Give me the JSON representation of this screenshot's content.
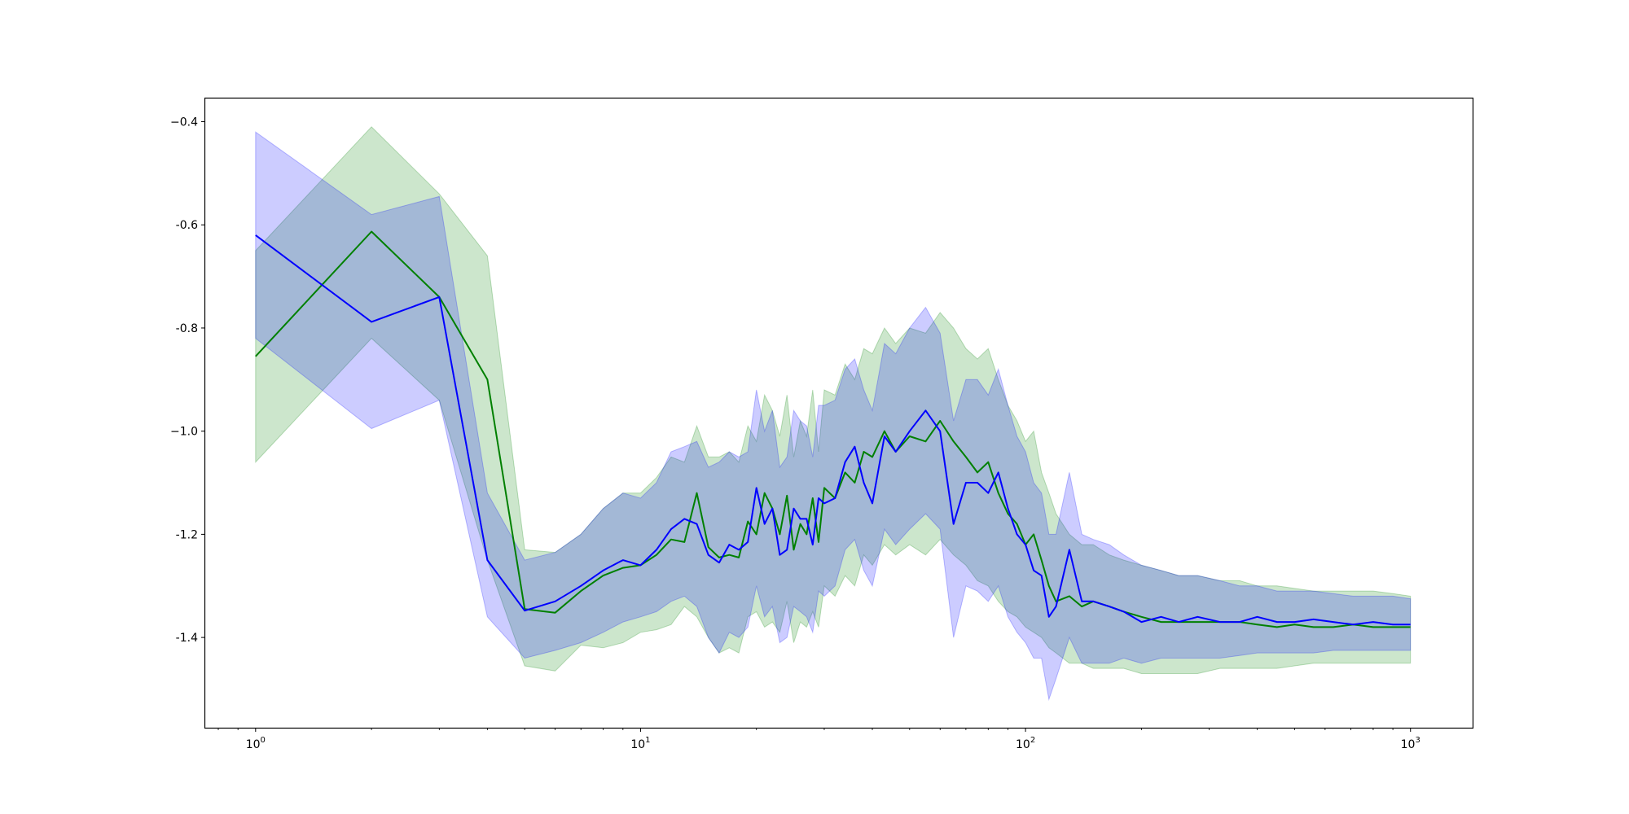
{
  "chart_data": {
    "type": "line",
    "title": "",
    "xlabel": "",
    "ylabel": "",
    "xscale": "log",
    "xlim": [
      0.74,
      1450
    ],
    "ylim": [
      -1.575,
      -0.355
    ],
    "x_ticks": [
      {
        "base": "10",
        "exp": "0",
        "value": 1
      },
      {
        "base": "10",
        "exp": "1",
        "value": 10
      },
      {
        "base": "10",
        "exp": "2",
        "value": 100
      },
      {
        "base": "10",
        "exp": "3",
        "value": 1000
      }
    ],
    "y_ticks": [
      {
        "label": "−0.4",
        "value": -0.4
      },
      {
        "label": "-0.6",
        "value": -0.6
      },
      {
        "label": "-0.8",
        "value": -0.8
      },
      {
        "label": "−1.0",
        "value": -1.0
      },
      {
        "label": "-1.2",
        "value": -1.2
      },
      {
        "label": "-1.4",
        "value": -1.4
      }
    ],
    "grid": false,
    "legend": "none",
    "series": [
      {
        "color": "#008000",
        "band_color": "#008000",
        "x": [
          1,
          2,
          3,
          4,
          5,
          6,
          7,
          8,
          9,
          10,
          11,
          12,
          13,
          14,
          15,
          16,
          17,
          18,
          19,
          20,
          21,
          22,
          23,
          24,
          25,
          26,
          27,
          28,
          29,
          30,
          32,
          34,
          36,
          38,
          40,
          43,
          46,
          50,
          55,
          60,
          65,
          70,
          75,
          80,
          85,
          90,
          95,
          100,
          105,
          110,
          115,
          120,
          130,
          140,
          150,
          165,
          180,
          200,
          225,
          250,
          280,
          320,
          360,
          400,
          450,
          500,
          560,
          630,
          710,
          800,
          900,
          1000
        ],
        "mean": [
          -0.855,
          -0.613,
          -0.74,
          -0.9,
          -1.345,
          -1.352,
          -1.31,
          -1.28,
          -1.265,
          -1.26,
          -1.24,
          -1.21,
          -1.215,
          -1.12,
          -1.225,
          -1.245,
          -1.24,
          -1.245,
          -1.175,
          -1.2,
          -1.12,
          -1.15,
          -1.2,
          -1.125,
          -1.23,
          -1.18,
          -1.2,
          -1.13,
          -1.215,
          -1.11,
          -1.13,
          -1.08,
          -1.1,
          -1.04,
          -1.05,
          -1.0,
          -1.04,
          -1.01,
          -1.02,
          -0.98,
          -1.02,
          -1.05,
          -1.08,
          -1.06,
          -1.12,
          -1.16,
          -1.18,
          -1.22,
          -1.2,
          -1.25,
          -1.3,
          -1.33,
          -1.32,
          -1.34,
          -1.33,
          -1.34,
          -1.35,
          -1.36,
          -1.37,
          -1.37,
          -1.37,
          -1.37,
          -1.37,
          -1.375,
          -1.38,
          -1.375,
          -1.38,
          -1.38,
          -1.375,
          -1.38,
          -1.38,
          -1.38
        ],
        "lower": [
          -1.06,
          -0.82,
          -0.94,
          -1.25,
          -1.455,
          -1.465,
          -1.415,
          -1.42,
          -1.41,
          -1.39,
          -1.385,
          -1.375,
          -1.34,
          -1.36,
          -1.4,
          -1.43,
          -1.42,
          -1.43,
          -1.36,
          -1.35,
          -1.38,
          -1.37,
          -1.39,
          -1.33,
          -1.41,
          -1.37,
          -1.38,
          -1.35,
          -1.38,
          -1.3,
          -1.32,
          -1.28,
          -1.3,
          -1.24,
          -1.26,
          -1.22,
          -1.24,
          -1.22,
          -1.24,
          -1.21,
          -1.24,
          -1.26,
          -1.29,
          -1.3,
          -1.33,
          -1.35,
          -1.36,
          -1.38,
          -1.39,
          -1.4,
          -1.42,
          -1.43,
          -1.45,
          -1.45,
          -1.46,
          -1.46,
          -1.46,
          -1.47,
          -1.47,
          -1.47,
          -1.47,
          -1.46,
          -1.46,
          -1.46,
          -1.46,
          -1.455,
          -1.45,
          -1.45,
          -1.45,
          -1.45,
          -1.45,
          -1.45
        ],
        "upper": [
          -0.65,
          -0.41,
          -0.54,
          -0.66,
          -1.23,
          -1.235,
          -1.2,
          -1.15,
          -1.12,
          -1.12,
          -1.09,
          -1.05,
          -1.06,
          -0.99,
          -1.05,
          -1.05,
          -1.04,
          -1.06,
          -0.99,
          -1.02,
          -0.93,
          -0.96,
          -1.01,
          -0.93,
          -1.05,
          -0.98,
          -1.01,
          -0.92,
          -1.04,
          -0.92,
          -0.93,
          -0.87,
          -0.9,
          -0.84,
          -0.85,
          -0.8,
          -0.83,
          -0.8,
          -0.81,
          -0.77,
          -0.8,
          -0.84,
          -0.86,
          -0.84,
          -0.9,
          -0.95,
          -0.98,
          -1.02,
          -1.0,
          -1.08,
          -1.12,
          -1.16,
          -1.2,
          -1.22,
          -1.22,
          -1.24,
          -1.25,
          -1.26,
          -1.27,
          -1.28,
          -1.28,
          -1.29,
          -1.29,
          -1.3,
          -1.3,
          -1.305,
          -1.31,
          -1.31,
          -1.31,
          -1.31,
          -1.315,
          -1.32
        ]
      },
      {
        "color": "#0000ff",
        "band_color": "#0000ff",
        "x": [
          1,
          2,
          3,
          4,
          5,
          6,
          7,
          8,
          9,
          10,
          11,
          12,
          13,
          14,
          15,
          16,
          17,
          18,
          19,
          20,
          21,
          22,
          23,
          24,
          25,
          26,
          27,
          28,
          29,
          30,
          32,
          34,
          36,
          38,
          40,
          43,
          46,
          50,
          55,
          60,
          65,
          70,
          75,
          80,
          85,
          90,
          95,
          100,
          105,
          110,
          115,
          120,
          130,
          140,
          150,
          165,
          180,
          200,
          225,
          250,
          280,
          320,
          360,
          400,
          450,
          500,
          560,
          630,
          710,
          800,
          900,
          1000
        ],
        "mean": [
          -0.62,
          -0.788,
          -0.74,
          -1.25,
          -1.348,
          -1.33,
          -1.3,
          -1.27,
          -1.25,
          -1.26,
          -1.23,
          -1.19,
          -1.17,
          -1.18,
          -1.24,
          -1.255,
          -1.22,
          -1.23,
          -1.215,
          -1.11,
          -1.18,
          -1.15,
          -1.24,
          -1.23,
          -1.15,
          -1.17,
          -1.17,
          -1.22,
          -1.13,
          -1.14,
          -1.13,
          -1.06,
          -1.03,
          -1.1,
          -1.14,
          -1.01,
          -1.04,
          -1.0,
          -0.96,
          -1.0,
          -1.18,
          -1.1,
          -1.1,
          -1.12,
          -1.08,
          -1.15,
          -1.2,
          -1.22,
          -1.27,
          -1.28,
          -1.36,
          -1.34,
          -1.23,
          -1.33,
          -1.33,
          -1.34,
          -1.35,
          -1.37,
          -1.36,
          -1.37,
          -1.36,
          -1.37,
          -1.37,
          -1.36,
          -1.37,
          -1.37,
          -1.365,
          -1.37,
          -1.375,
          -1.37,
          -1.375,
          -1.375
        ],
        "lower": [
          -0.82,
          -0.995,
          -0.94,
          -1.36,
          -1.44,
          -1.425,
          -1.41,
          -1.39,
          -1.37,
          -1.36,
          -1.35,
          -1.33,
          -1.32,
          -1.34,
          -1.4,
          -1.43,
          -1.39,
          -1.4,
          -1.38,
          -1.3,
          -1.36,
          -1.34,
          -1.41,
          -1.4,
          -1.34,
          -1.35,
          -1.36,
          -1.39,
          -1.31,
          -1.32,
          -1.3,
          -1.23,
          -1.21,
          -1.27,
          -1.3,
          -1.19,
          -1.22,
          -1.19,
          -1.16,
          -1.19,
          -1.4,
          -1.3,
          -1.31,
          -1.33,
          -1.3,
          -1.36,
          -1.39,
          -1.41,
          -1.44,
          -1.44,
          -1.52,
          -1.48,
          -1.4,
          -1.45,
          -1.45,
          -1.45,
          -1.44,
          -1.45,
          -1.44,
          -1.44,
          -1.44,
          -1.44,
          -1.435,
          -1.43,
          -1.43,
          -1.43,
          -1.43,
          -1.425,
          -1.425,
          -1.425,
          -1.425,
          -1.425
        ],
        "upper": [
          -0.42,
          -0.58,
          -0.545,
          -1.12,
          -1.25,
          -1.235,
          -1.2,
          -1.15,
          -1.12,
          -1.13,
          -1.1,
          -1.04,
          -1.03,
          -1.02,
          -1.07,
          -1.06,
          -1.04,
          -1.05,
          -1.04,
          -0.92,
          -1.0,
          -0.96,
          -1.07,
          -1.05,
          -0.96,
          -0.98,
          -0.99,
          -1.05,
          -0.95,
          -0.95,
          -0.94,
          -0.88,
          -0.86,
          -0.92,
          -0.96,
          -0.83,
          -0.85,
          -0.8,
          -0.76,
          -0.81,
          -0.98,
          -0.9,
          -0.9,
          -0.93,
          -0.88,
          -0.95,
          -1.01,
          -1.04,
          -1.1,
          -1.12,
          -1.2,
          -1.2,
          -1.08,
          -1.2,
          -1.21,
          -1.22,
          -1.24,
          -1.26,
          -1.27,
          -1.28,
          -1.28,
          -1.29,
          -1.3,
          -1.3,
          -1.31,
          -1.31,
          -1.31,
          -1.315,
          -1.32,
          -1.32,
          -1.32,
          -1.325
        ]
      }
    ]
  }
}
